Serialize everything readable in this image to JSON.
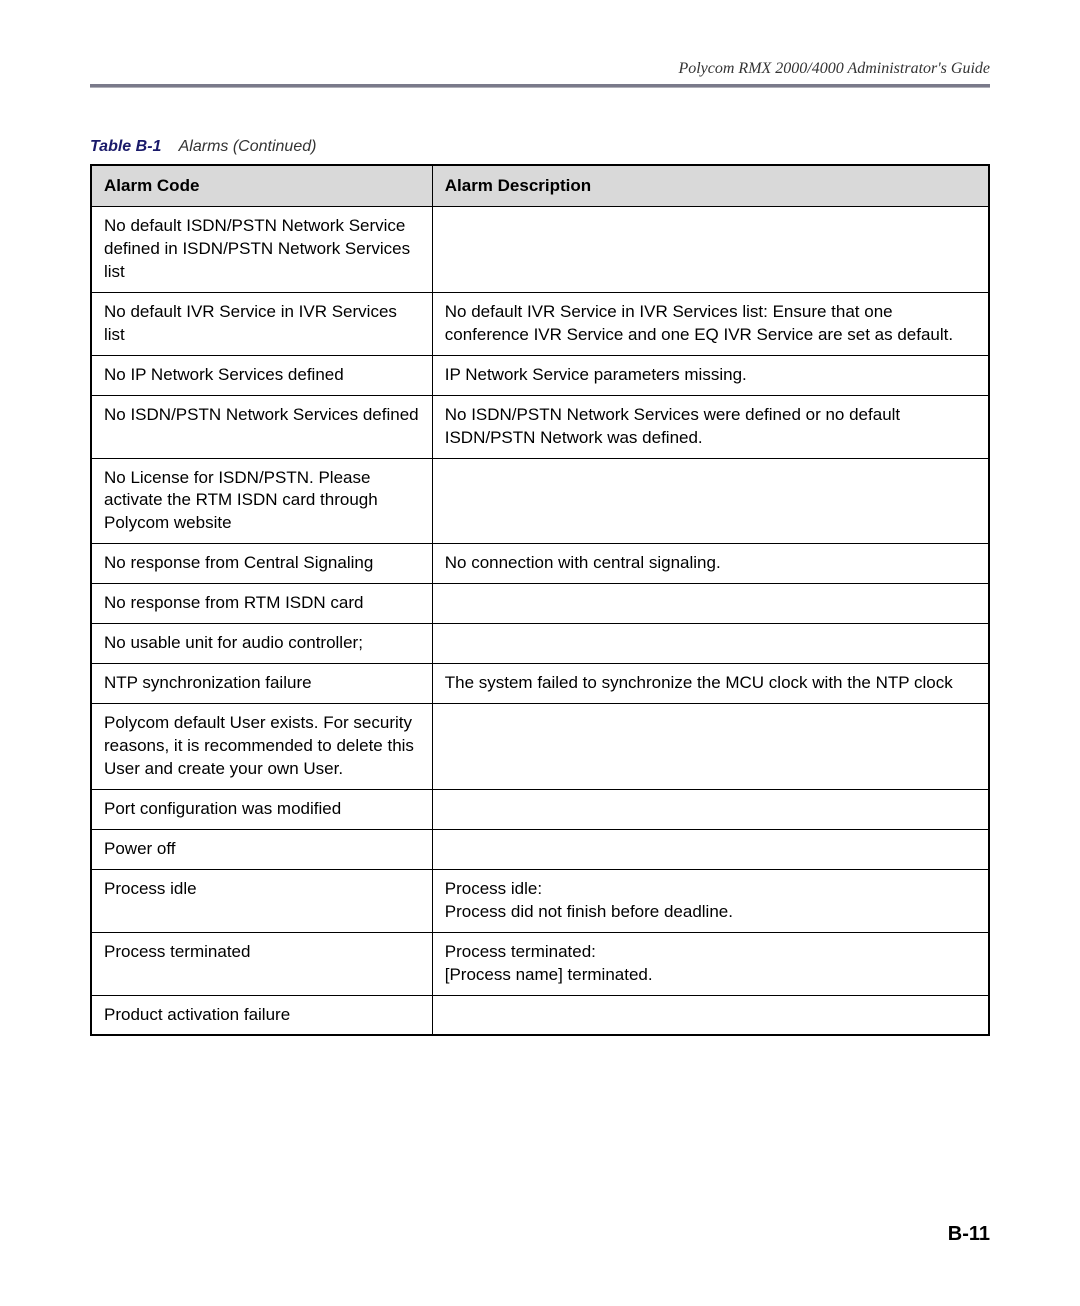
{
  "header": {
    "guide_title": "Polycom RMX 2000/4000 Administrator's Guide"
  },
  "caption": {
    "label": "Table B-1",
    "text": "Alarms (Continued)"
  },
  "table": {
    "columns": [
      "Alarm Code",
      "Alarm Description"
    ],
    "col_widths_pct": [
      38,
      62
    ],
    "header_bg": "#d9d9d9",
    "border_color": "#000000",
    "font_size_pt": 13,
    "rows": [
      {
        "code": "No default ISDN/PSTN Network Service defined in ISDN/PSTN Network Services list",
        "desc": ""
      },
      {
        "code": "No default IVR Service in IVR Services list",
        "desc": "No default IVR Service in IVR Services list: Ensure that one conference IVR Service and one EQ IVR Service are set as default."
      },
      {
        "code": "No IP Network Services defined",
        "desc": "IP Network Service parameters missing."
      },
      {
        "code": "No ISDN/PSTN Network Services defined",
        "desc": "No ISDN/PSTN Network Services were defined or no default ISDN/PSTN Network was defined."
      },
      {
        "code": "No License for ISDN/PSTN. Please activate the RTM ISDN card through Polycom website",
        "desc": ""
      },
      {
        "code": "No response from Central Signaling",
        "desc": "No connection with central signaling."
      },
      {
        "code": "No response from RTM ISDN card",
        "desc": ""
      },
      {
        "code": "No usable unit for audio controller;",
        "desc": ""
      },
      {
        "code": "NTP synchronization failure",
        "desc": "The system failed to synchronize the MCU clock with the NTP clock"
      },
      {
        "code": "Polycom default User exists. For security reasons, it is recommended to delete this User and create your own User.",
        "desc": ""
      },
      {
        "code": "Port configuration was modified",
        "desc": ""
      },
      {
        "code": "Power off",
        "desc": ""
      },
      {
        "code": "Process idle",
        "desc": "Process idle:\nProcess did not finish before deadline."
      },
      {
        "code": "Process terminated",
        "desc": "Process terminated:\n[Process name] terminated."
      },
      {
        "code": "Product activation failure",
        "desc": ""
      }
    ]
  },
  "page_number": "B-11",
  "colors": {
    "caption_bold": "#1a1a6a",
    "rule": "#7a7a8a",
    "background": "#ffffff"
  }
}
